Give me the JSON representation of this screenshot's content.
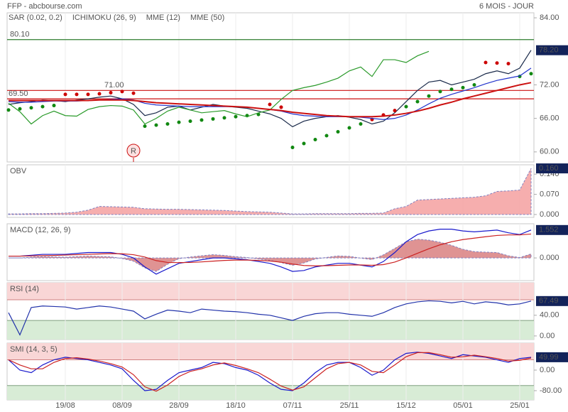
{
  "header": {
    "title": "FFP - abcbourse.com",
    "period": "6 MOIS - JOUR"
  },
  "chart_data": [
    {
      "type": "line",
      "ylim": [
        58.2,
        84.9
      ],
      "yticks": [
        {
          "value": 84,
          "label": "84.00"
        },
        {
          "value": 72,
          "label": "72.00"
        },
        {
          "value": 66,
          "label": "66.00"
        },
        {
          "value": 60,
          "label": "60.00"
        }
      ],
      "last_value": {
        "value": 78.2,
        "label": "78.20"
      },
      "hlines": [
        {
          "value": 80.1,
          "label": "80.10",
          "color": "#2e7d2e"
        },
        {
          "value": 71,
          "label": "71.00",
          "color": "#cc1111"
        },
        {
          "value": 69.5,
          "label": "69.50",
          "color": "#cc1111"
        }
      ],
      "marker": {
        "label": "R",
        "index": 11
      },
      "series": [
        {
          "style": "line",
          "color": "#1a2a4a",
          "values": [
            68.5,
            68.8,
            69.0,
            69.3,
            69.2,
            69.0,
            69.3,
            69.5,
            69.8,
            70.0,
            69.5,
            68.5,
            66.5,
            67.0,
            68.0,
            68.2,
            67.5,
            68.0,
            68.5,
            68.2,
            68.0,
            67.8,
            67.3,
            66.8,
            66.0,
            64.5,
            65.5,
            66.0,
            66.3,
            66.5,
            66.2,
            65.8,
            65.0,
            65.5,
            67.0,
            69.0,
            71.0,
            72.5,
            72.8,
            72.0,
            72.5,
            73.0,
            74.0,
            74.5,
            74.0,
            75.0,
            78.2
          ]
        },
        {
          "name": "SAR (0.02, 0.2)",
          "style": "dots",
          "color": "#118811",
          "above_color": "#cc0000",
          "values": [
            67.5,
            67.7,
            67.9,
            68.1,
            68.3,
            70.3,
            70.3,
            70.3,
            70.4,
            70.6,
            70.8,
            70.5,
            64.6,
            64.8,
            65.0,
            65.3,
            65.5,
            65.7,
            65.9,
            66.1,
            66.3,
            66.5,
            66.7,
            68.5,
            68.0,
            60.8,
            61.5,
            62.2,
            62.9,
            63.6,
            64.3,
            65.0,
            65.8,
            66.6,
            67.4,
            68.1,
            69.0,
            70.0,
            70.8,
            71.2,
            71.5,
            72.0,
            76.0,
            75.9,
            75.8,
            73.5,
            74.0
          ]
        },
        {
          "name": "ICHIMOKU (26, 9)",
          "style": "line",
          "color": "#2a9a2a",
          "values": [
            68.7,
            67.2,
            65,
            66.5,
            67.3,
            66.5,
            66.4,
            67.6,
            68.1,
            68.3,
            68.2,
            67.5,
            65,
            66,
            67.3,
            68,
            67.5,
            67,
            67.2,
            67.4,
            66.8,
            66.3,
            67,
            67.5,
            69.4,
            71,
            71.5,
            71.9,
            72.5,
            73.2,
            74.5,
            75.2,
            73.5,
            76.5,
            76.5,
            76,
            77.2,
            78,
            null,
            null,
            null,
            null,
            null,
            null,
            null,
            null,
            null
          ]
        },
        {
          "name": "MME (12)",
          "style": "line",
          "color": "#2233cc",
          "values": [
            69.0,
            68.9,
            68.9,
            69.0,
            69.1,
            69.1,
            69.1,
            69.2,
            69.3,
            69.4,
            69.5,
            69.3,
            68.7,
            68.4,
            68.3,
            68.2,
            68.1,
            68.1,
            68.1,
            68.1,
            68.1,
            68.0,
            67.8,
            67.6,
            67.3,
            66.8,
            66.5,
            66.4,
            66.3,
            66.3,
            66.3,
            66.2,
            66.0,
            65.8,
            66.0,
            66.6,
            67.5,
            68.6,
            69.6,
            70.3,
            70.9,
            71.5,
            72.2,
            72.8,
            73.2,
            73.6,
            75.0
          ]
        },
        {
          "name": "MME (50)",
          "style": "line",
          "color": "#cc1111",
          "width": 2,
          "values": [
            69.2,
            69.2,
            69.2,
            69.2,
            69.2,
            69.2,
            69.2,
            69.2,
            69.3,
            69.3,
            69.3,
            69.2,
            69.0,
            68.8,
            68.7,
            68.6,
            68.5,
            68.4,
            68.3,
            68.2,
            68.1,
            68.0,
            67.8,
            67.6,
            67.4,
            67.1,
            66.9,
            66.7,
            66.5,
            66.4,
            66.3,
            66.3,
            66.3,
            66.4,
            66.6,
            66.9,
            67.3,
            67.8,
            68.4,
            68.9,
            69.5,
            70.0,
            70.5,
            71.0,
            71.5,
            72.0,
            72.4
          ]
        }
      ]
    },
    {
      "type": "area",
      "title": "OBV",
      "ylim": [
        -0.01,
        0.1725
      ],
      "yticks": [
        {
          "value": 0.14,
          "label": "0.140"
        },
        {
          "value": 0.07,
          "label": "0.070"
        },
        {
          "value": 0,
          "label": "0.000"
        }
      ],
      "last_value": {
        "value": 0.16,
        "label": "0.160"
      },
      "series": [
        {
          "style": "area",
          "color": "#f4a0a0",
          "values": [
            0.002,
            0.002,
            0.003,
            0.003,
            0.004,
            0.005,
            0.008,
            0.015,
            0.028,
            0.027,
            0.026,
            0.025,
            0.02,
            0.019,
            0.018,
            0.018,
            0.017,
            0.016,
            0.015,
            0.014,
            0.012,
            0.01,
            0.009,
            0.008,
            0.005,
            0.002,
            0.002,
            0.003,
            0.003,
            0.003,
            0.003,
            0.004,
            0.004,
            0.005,
            0.02,
            0.028,
            0.05,
            0.052,
            0.054,
            0.056,
            0.058,
            0.06,
            0.065,
            0.08,
            0.082,
            0.085,
            0.16
          ]
        }
      ]
    },
    {
      "type": "line",
      "title": "MACD (12, 26, 9)",
      "ylim": [
        -1.26,
        1.9
      ],
      "yticks": [
        {
          "value": 0,
          "label": "0.000"
        }
      ],
      "last_value": {
        "value": 1.552,
        "label": "1.552"
      },
      "series": [
        {
          "style": "area",
          "color": "#d98080",
          "values": [
            0,
            0,
            0.04,
            0.07,
            0.06,
            0.04,
            0.07,
            0.1,
            0.08,
            0.06,
            -0.03,
            -0.18,
            -0.55,
            -0.75,
            -0.35,
            -0.04,
            0.05,
            0.12,
            0.18,
            0.14,
            0.07,
            0.02,
            -0.06,
            -0.13,
            -0.26,
            -0.41,
            -0.28,
            -0.06,
            0.03,
            0.11,
            0.09,
            -0.01,
            -0.09,
            0.17,
            0.53,
            0.9,
            1.04,
            0.99,
            0.87,
            0.7,
            0.48,
            0.35,
            0.32,
            0.3,
            0.12,
            0.02,
            0.22
          ]
        },
        {
          "style": "line",
          "color": "#1a1acc",
          "values": [
            0.1,
            0.1,
            0.15,
            0.2,
            0.2,
            0.2,
            0.25,
            0.3,
            0.3,
            0.3,
            0.2,
            0,
            -0.5,
            -0.9,
            -0.6,
            -0.3,
            -0.2,
            -0.1,
            0,
            0,
            -0.05,
            -0.1,
            -0.2,
            -0.3,
            -0.5,
            -0.75,
            -0.7,
            -0.5,
            -0.4,
            -0.3,
            -0.3,
            -0.4,
            -0.5,
            -0.2,
            0.3,
            0.9,
            1.3,
            1.5,
            1.6,
            1.6,
            1.5,
            1.45,
            1.5,
            1.55,
            1.4,
            1.3,
            1.552
          ]
        },
        {
          "style": "line",
          "color": "#cc2222",
          "values": [
            0.1,
            0.1,
            0.11,
            0.13,
            0.14,
            0.16,
            0.18,
            0.2,
            0.22,
            0.24,
            0.23,
            0.18,
            0.05,
            -0.15,
            -0.25,
            -0.26,
            -0.25,
            -0.22,
            -0.18,
            -0.14,
            -0.12,
            -0.12,
            -0.14,
            -0.17,
            -0.24,
            -0.34,
            -0.42,
            -0.44,
            -0.43,
            -0.41,
            -0.39,
            -0.39,
            -0.41,
            -0.37,
            -0.23,
            0,
            0.26,
            0.51,
            0.73,
            0.9,
            1.02,
            1.1,
            1.18,
            1.25,
            1.28,
            1.28,
            1.33
          ]
        }
      ]
    },
    {
      "type": "line",
      "title": "RSI (14)",
      "ylim": [
        -7,
        103
      ],
      "bands": [
        30,
        70
      ],
      "yticks": [
        {
          "value": 40,
          "label": "40.00"
        },
        {
          "value": 0,
          "label": "0.00"
        }
      ],
      "last_value": {
        "value": 67.49,
        "label": "67.49"
      },
      "series": [
        {
          "style": "line",
          "color": "#2233aa",
          "values": [
            45,
            2,
            55,
            58,
            57,
            56,
            52,
            55,
            58,
            56,
            52,
            48,
            33,
            42,
            50,
            48,
            45,
            52,
            50,
            48,
            47,
            45,
            42,
            40,
            35,
            30,
            38,
            43,
            45,
            45,
            42,
            40,
            38,
            45,
            55,
            62,
            66,
            68,
            67,
            64,
            67,
            62,
            66,
            64,
            60,
            62,
            67.49
          ]
        }
      ]
    },
    {
      "type": "line",
      "title": "SMI (14, 3, 5)",
      "ylim": [
        -116,
        105
      ],
      "bands": [
        -60,
        40
      ],
      "yticks": [
        {
          "value": 0,
          "label": "0.00"
        },
        {
          "value": -80,
          "label": "-80.00"
        }
      ],
      "last_value": {
        "value": 49.99,
        "label": "49.99"
      },
      "categories": [
        null,
        null,
        null,
        null,
        null,
        "19/08",
        null,
        null,
        null,
        null,
        "08/09",
        null,
        null,
        null,
        null,
        "28/09",
        null,
        null,
        null,
        null,
        "18/10",
        null,
        null,
        null,
        null,
        "07/11",
        null,
        null,
        null,
        null,
        "25/11",
        null,
        null,
        null,
        null,
        "15/12",
        null,
        null,
        null,
        null,
        "05/01",
        null,
        null,
        null,
        null,
        "25/01",
        null
      ],
      "series": [
        {
          "style": "line",
          "color": "#1a1acc",
          "values": [
            40,
            0,
            -10,
            20,
            40,
            50,
            45,
            40,
            30,
            20,
            5,
            -40,
            -80,
            -75,
            -40,
            -10,
            0,
            10,
            30,
            25,
            10,
            0,
            -20,
            -50,
            -75,
            -80,
            -50,
            -10,
            20,
            30,
            30,
            10,
            -20,
            0,
            40,
            65,
            70,
            65,
            55,
            45,
            60,
            55,
            50,
            40,
            30,
            45,
            49.99
          ]
        },
        {
          "style": "line",
          "color": "#cc2222",
          "values": [
            40,
            20,
            5,
            5,
            30,
            45,
            48,
            43,
            35,
            25,
            12,
            -18,
            -65,
            -82,
            -58,
            -25,
            -5,
            5,
            20,
            28,
            18,
            5,
            -10,
            -35,
            -62,
            -78,
            -65,
            -30,
            5,
            25,
            30,
            20,
            -5,
            -10,
            20,
            52,
            68,
            68,
            60,
            50,
            52,
            58,
            52,
            45,
            35,
            38,
            47
          ]
        }
      ]
    }
  ]
}
